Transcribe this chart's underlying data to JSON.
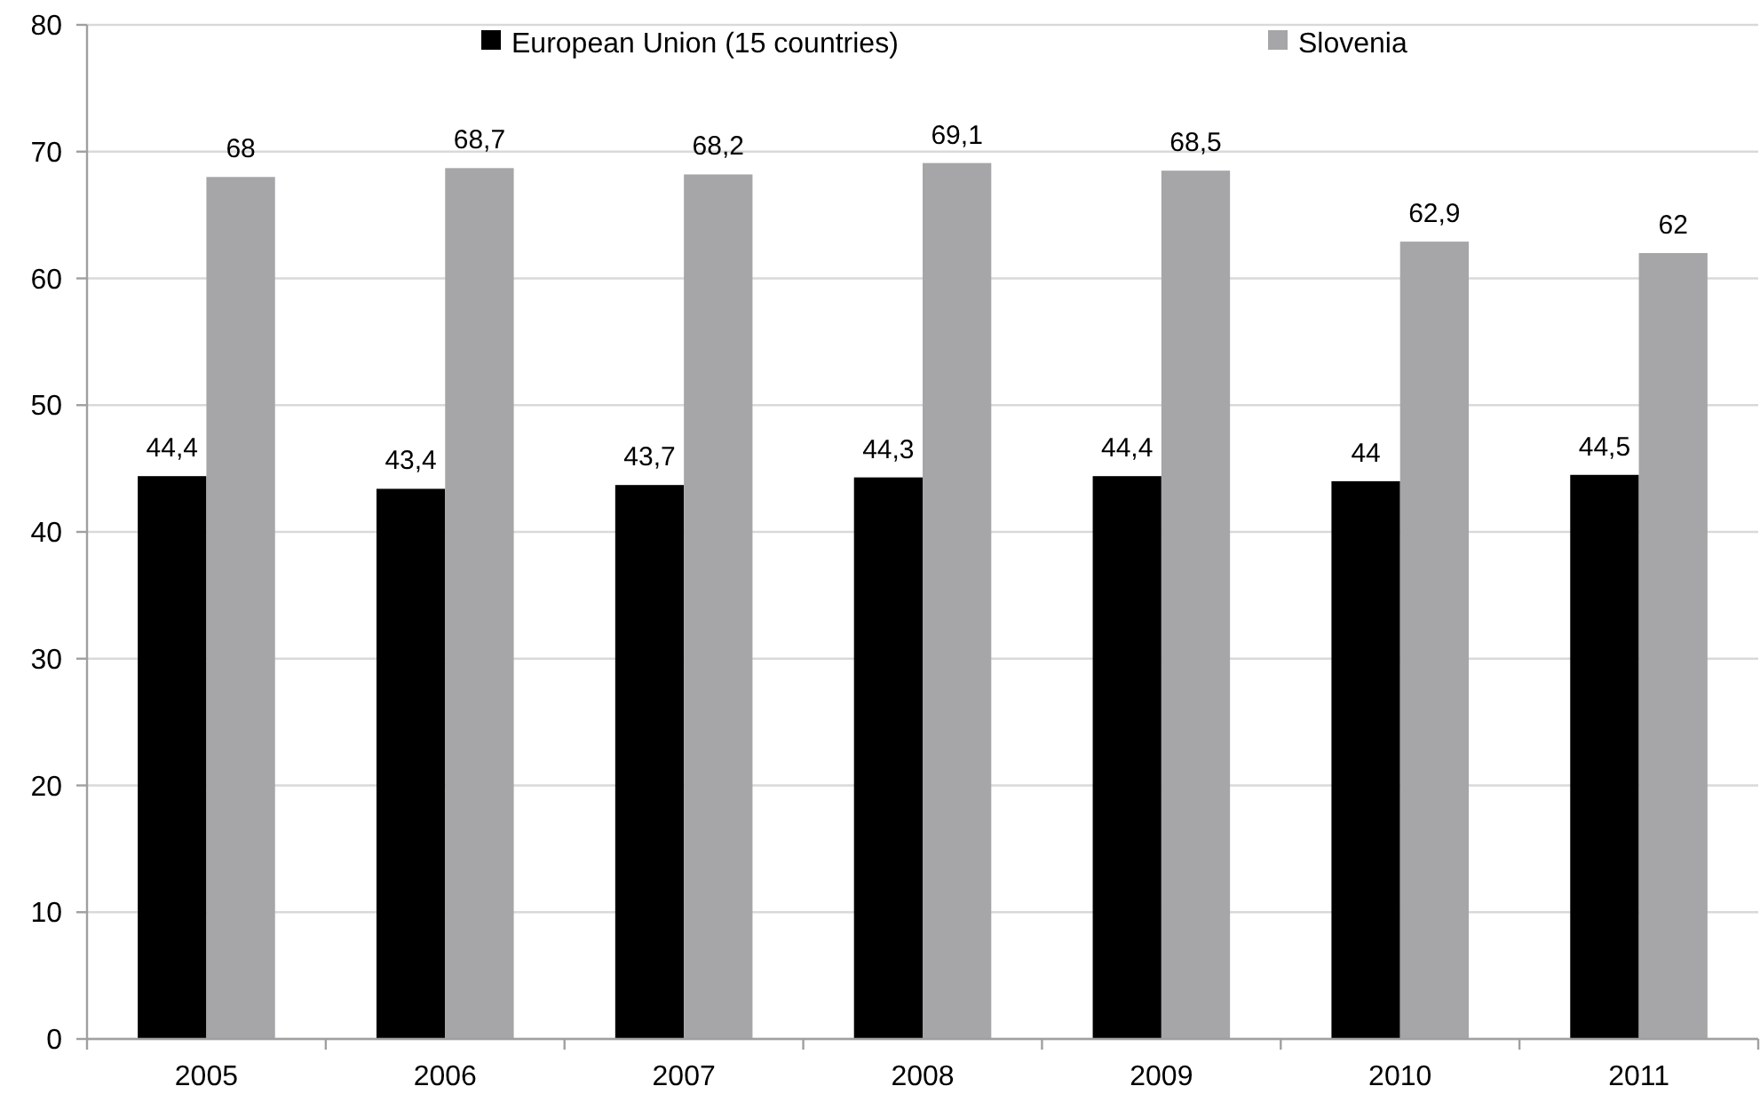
{
  "chart_data": {
    "type": "bar",
    "categories": [
      "2005",
      "2006",
      "2007",
      "2008",
      "2009",
      "2010",
      "2011"
    ],
    "series": [
      {
        "name": "European Union (15 countries)",
        "color": "#000000",
        "values": [
          44.4,
          43.4,
          43.7,
          44.3,
          44.4,
          44,
          44.5
        ],
        "value_labels": [
          "44,4",
          "43,4",
          "43,7",
          "44,3",
          "44,4",
          "44",
          "44,5"
        ]
      },
      {
        "name": "Slovenia",
        "color": "#a6a6a9",
        "values": [
          68,
          68.7,
          68.2,
          69.1,
          68.5,
          62.9,
          62
        ],
        "value_labels": [
          "68",
          "68,7",
          "68,2",
          "69,1",
          "68,5",
          "62,9",
          "62"
        ]
      }
    ],
    "ylim": [
      0,
      80
    ],
    "yticks": [
      0,
      10,
      20,
      30,
      40,
      50,
      60,
      70,
      80
    ],
    "grid": "y",
    "legend": "top"
  }
}
